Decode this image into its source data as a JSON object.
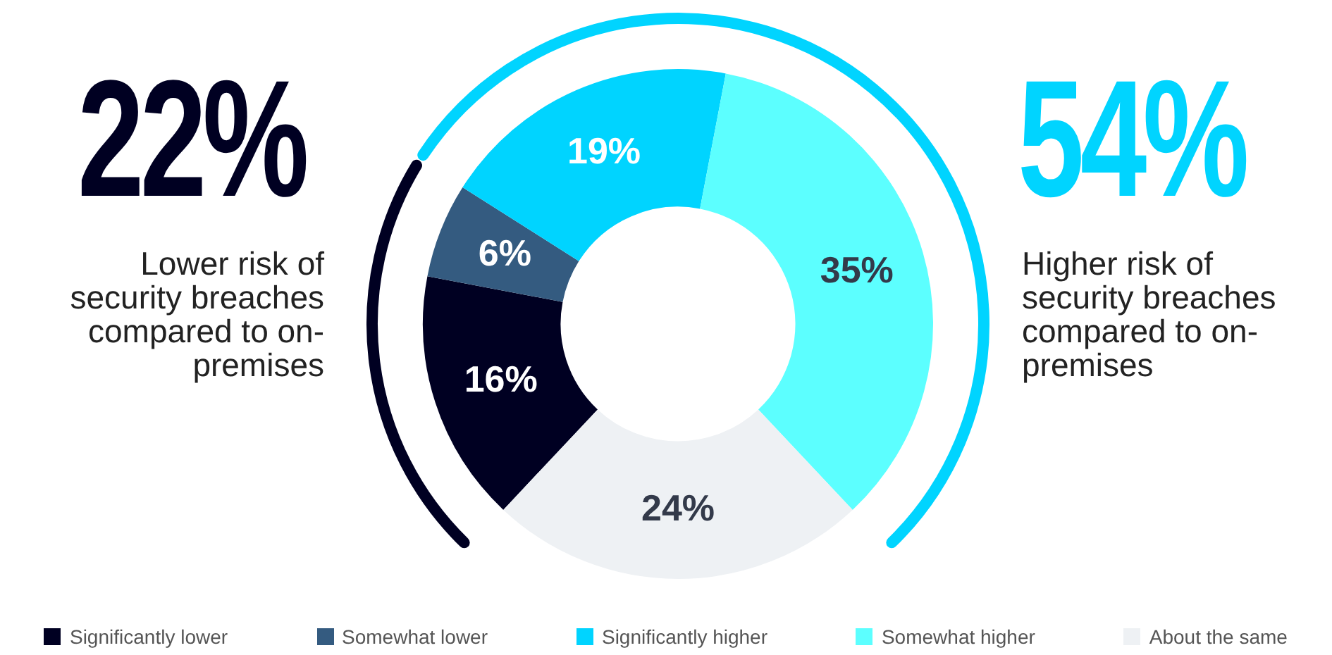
{
  "chart_data": {
    "type": "donut",
    "categories": [
      "Significantly lower",
      "Somewhat lower",
      "Significantly higher",
      "Somewhat higher",
      "About the same"
    ],
    "values": [
      16,
      6,
      19,
      35,
      24
    ],
    "colors": [
      "#000022",
      "#345b80",
      "#00d4ff",
      "#5cffff",
      "#eef1f4"
    ],
    "value_labels": [
      "16%",
      "6%",
      "19%",
      "35%",
      "24%"
    ],
    "legend": "bottom",
    "annotations": [
      "22%",
      "Lower risk of security breaches compared to on-premises",
      "54%",
      "Higher risk of security breaches compared to on-premises"
    ]
  }
}
